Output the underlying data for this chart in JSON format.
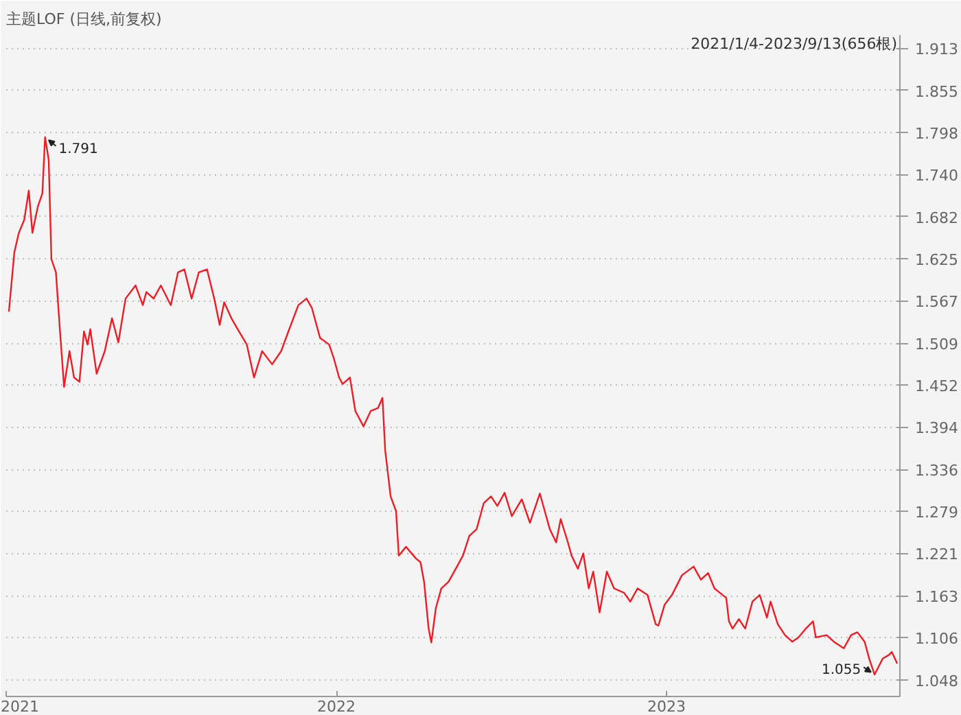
{
  "chart_data": {
    "type": "line",
    "title": "主题LOF (日线,前复权)",
    "annotations": [
      "2021/1/4-2023/9/13(656根)",
      {
        "text": "1.791",
        "x": "2021-02-13",
        "y": 1.791
      },
      {
        "text": "1.055",
        "x": "2023-08-19",
        "y": 1.055
      }
    ],
    "x": [
      "2021-01-04",
      "2021-01-10",
      "2021-01-15",
      "2021-01-21",
      "2021-01-26",
      "2021-01-30",
      "2021-02-05",
      "2021-02-10",
      "2021-02-13",
      "2021-02-17",
      "2021-02-20",
      "2021-02-25",
      "2021-03-01",
      "2021-03-06",
      "2021-03-12",
      "2021-03-17",
      "2021-03-23",
      "2021-03-28",
      "2021-04-01",
      "2021-04-04",
      "2021-04-11",
      "2021-04-20",
      "2021-04-28",
      "2021-05-05",
      "2021-05-13",
      "2021-05-24",
      "2021-06-01",
      "2021-06-05",
      "2021-06-13",
      "2021-06-21",
      "2021-07-02",
      "2021-07-10",
      "2021-07-17",
      "2021-07-25",
      "2021-08-02",
      "2021-08-11",
      "2021-08-19",
      "2021-08-25",
      "2021-08-30",
      "2021-09-07",
      "2021-09-14",
      "2021-09-24",
      "2021-10-02",
      "2021-10-11",
      "2021-10-22",
      "2021-11-01",
      "2021-11-09",
      "2021-11-20",
      "2021-11-29",
      "2021-12-05",
      "2021-12-14",
      "2021-12-24",
      "2021-12-29",
      "2022-01-04",
      "2022-01-08",
      "2022-01-16",
      "2022-01-22",
      "2022-01-31",
      "2022-02-08",
      "2022-02-16",
      "2022-02-21",
      "2022-02-24",
      "2022-03-02",
      "2022-03-08",
      "2022-03-11",
      "2022-03-19",
      "2022-03-30",
      "2022-04-04",
      "2022-04-08",
      "2022-04-13",
      "2022-04-16",
      "2022-04-21",
      "2022-04-27",
      "2022-05-05",
      "2022-05-13",
      "2022-05-21",
      "2022-05-28",
      "2022-06-05",
      "2022-06-13",
      "2022-06-21",
      "2022-06-28",
      "2022-07-06",
      "2022-07-14",
      "2022-07-25",
      "2022-08-03",
      "2022-08-14",
      "2022-08-25",
      "2022-09-01",
      "2022-09-06",
      "2022-09-14",
      "2022-09-18",
      "2022-09-25",
      "2022-10-01",
      "2022-10-07",
      "2022-10-12",
      "2022-10-19",
      "2022-10-27",
      "2022-11-04",
      "2022-11-15",
      "2022-11-22",
      "2022-11-30",
      "2022-12-11",
      "2022-12-20",
      "2022-12-23",
      "2022-12-30",
      "2023-01-07",
      "2023-01-18",
      "2023-01-31",
      "2023-02-08",
      "2023-02-16",
      "2023-02-23",
      "2023-03-01",
      "2023-03-08",
      "2023-03-11",
      "2023-03-15",
      "2023-03-22",
      "2023-03-29",
      "2023-04-06",
      "2023-04-14",
      "2023-04-22",
      "2023-04-26",
      "2023-05-04",
      "2023-05-12",
      "2023-05-20",
      "2023-05-27",
      "2023-06-04",
      "2023-06-12",
      "2023-06-15",
      "2023-06-27",
      "2023-07-05",
      "2023-07-16",
      "2023-07-24",
      "2023-07-31",
      "2023-08-08",
      "2023-08-13",
      "2023-08-19",
      "2023-08-28",
      "2023-09-04",
      "2023-09-07",
      "2023-09-13"
    ],
    "series": [
      {
        "color": "#ee1c25",
        "values": [
          1.552,
          1.633,
          1.66,
          1.678,
          1.718,
          1.66,
          1.696,
          1.714,
          1.791,
          1.76,
          1.624,
          1.606,
          1.534,
          1.449,
          1.498,
          1.462,
          1.456,
          1.525,
          1.507,
          1.528,
          1.467,
          1.498,
          1.543,
          1.51,
          1.57,
          1.588,
          1.561,
          1.579,
          1.57,
          1.588,
          1.561,
          1.606,
          1.61,
          1.57,
          1.606,
          1.61,
          1.57,
          1.534,
          1.565,
          1.543,
          1.528,
          1.507,
          1.462,
          1.498,
          1.48,
          1.498,
          1.525,
          1.561,
          1.57,
          1.557,
          1.516,
          1.507,
          1.489,
          1.462,
          1.453,
          1.462,
          1.416,
          1.395,
          1.416,
          1.42,
          1.434,
          1.362,
          1.299,
          1.279,
          1.218,
          1.23,
          1.214,
          1.209,
          1.182,
          1.118,
          1.099,
          1.146,
          1.173,
          1.182,
          1.2,
          1.218,
          1.245,
          1.254,
          1.29,
          1.299,
          1.286,
          1.304,
          1.272,
          1.295,
          1.263,
          1.303,
          1.254,
          1.236,
          1.268,
          1.236,
          1.218,
          1.2,
          1.221,
          1.173,
          1.196,
          1.14,
          1.196,
          1.173,
          1.167,
          1.155,
          1.173,
          1.164,
          1.124,
          1.122,
          1.151,
          1.164,
          1.191,
          1.203,
          1.185,
          1.194,
          1.173,
          1.167,
          1.16,
          1.128,
          1.118,
          1.131,
          1.118,
          1.155,
          1.164,
          1.133,
          1.155,
          1.124,
          1.109,
          1.1,
          1.106,
          1.118,
          1.128,
          1.106,
          1.109,
          1.1,
          1.091,
          1.109,
          1.113,
          1.1,
          1.077,
          1.055,
          1.077,
          1.082,
          1.086,
          1.07
        ]
      }
    ],
    "xlim": [
      "2021-01-01",
      "2023-09-16"
    ],
    "xticks": [
      {
        "value": "2021-01-01",
        "label": "2021"
      },
      {
        "value": "2022-01-01",
        "label": "2022"
      },
      {
        "value": "2023-01-01",
        "label": "2023"
      }
    ],
    "ylim": [
      1.025,
      1.931
    ],
    "yticks": [
      1.048,
      1.106,
      1.163,
      1.221,
      1.279,
      1.336,
      1.394,
      1.452,
      1.509,
      1.567,
      1.625,
      1.682,
      {
        "value": 1.74,
        "label": "1.740"
      },
      1.798,
      1.855,
      1.913
    ],
    "grid": "y",
    "line_style": "solid",
    "marker": "none"
  }
}
